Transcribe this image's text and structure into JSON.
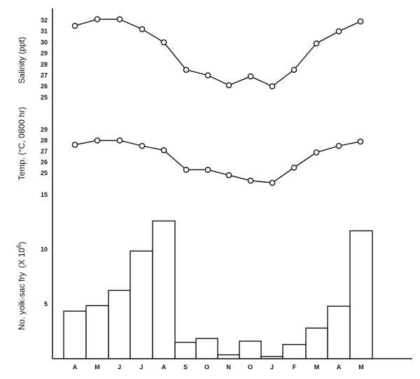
{
  "chart_data": [
    {
      "type": "line",
      "title": "",
      "ylabel": "Salinity (ppt)",
      "x": [
        "A",
        "M",
        "J",
        "J",
        "A",
        "S",
        "O",
        "N",
        "O",
        "J",
        "F",
        "M",
        "A",
        "M"
      ],
      "yticks": [
        25,
        26,
        27,
        28,
        29,
        30,
        31,
        32
      ],
      "ylim": [
        25,
        32
      ],
      "values": [
        31.5,
        32.1,
        32.1,
        31.2,
        30.0,
        27.5,
        27.0,
        26.1,
        26.9,
        26.0,
        27.5,
        29.9,
        31.0,
        31.9
      ]
    },
    {
      "type": "line",
      "title": "",
      "ylabel": "Temp. (°C, 0800 hr)",
      "x": [
        "A",
        "M",
        "J",
        "J",
        "A",
        "S",
        "O",
        "N",
        "O",
        "J",
        "F",
        "M",
        "A",
        "M"
      ],
      "yticks": [
        25,
        26,
        27,
        28,
        29
      ],
      "ylim": [
        24,
        29
      ],
      "values": [
        27.6,
        28.0,
        28.0,
        27.5,
        27.1,
        25.3,
        25.3,
        24.8,
        24.3,
        24.1,
        25.5,
        26.9,
        27.5,
        27.9
      ]
    },
    {
      "type": "bar",
      "title": "",
      "ylabel": "No. yolk-sac fry",
      "ylabel_unit": "(X 10",
      "ylabel_exp": "6",
      "ylabel_close": ")",
      "categories": [
        "A",
        "M",
        "J",
        "J",
        "A",
        "S",
        "O",
        "N",
        "O",
        "J",
        "F",
        "M",
        "A",
        "M"
      ],
      "yticks": [
        5,
        10,
        15
      ],
      "ylim": [
        0,
        15
      ],
      "values": [
        4.35,
        4.85,
        6.25,
        9.85,
        12.6,
        1.5,
        1.85,
        0.35,
        1.6,
        0.2,
        1.3,
        2.8,
        4.8,
        11.7
      ]
    }
  ]
}
